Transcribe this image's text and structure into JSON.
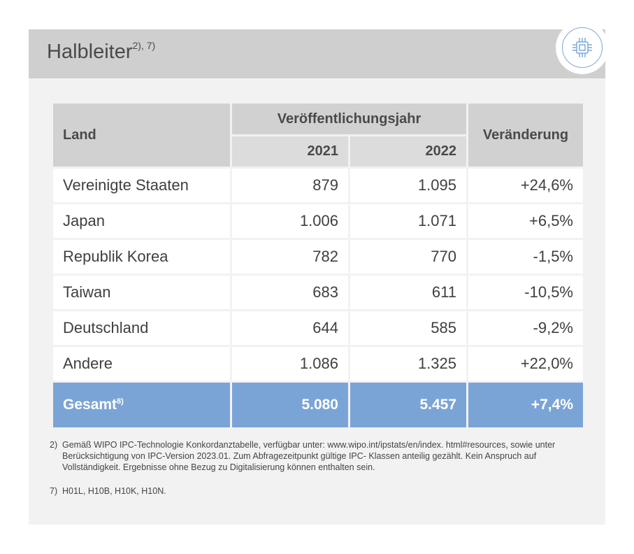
{
  "header": {
    "title": "Halbleiter",
    "title_sup": "2), 7)",
    "icon": "chip-icon"
  },
  "table": {
    "col_land": "Land",
    "col_group": "Veröffentlichungsjahr",
    "col_2021": "2021",
    "col_2022": "2022",
    "col_change": "Veränderung",
    "rows": [
      {
        "land": "Vereinigte Staaten",
        "y2021": "879",
        "y2022": "1.095",
        "change": "+24,6%"
      },
      {
        "land": "Japan",
        "y2021": "1.006",
        "y2022": "1.071",
        "change": "+6,5%"
      },
      {
        "land": "Republik Korea",
        "y2021": "782",
        "y2022": "770",
        "change": "-1,5%"
      },
      {
        "land": "Taiwan",
        "y2021": "683",
        "y2022": "611",
        "change": "-10,5%"
      },
      {
        "land": "Deutschland",
        "y2021": "644",
        "y2022": "585",
        "change": "-9,2%"
      },
      {
        "land": "Andere",
        "y2021": "1.086",
        "y2022": "1.325",
        "change": "+22,0%"
      }
    ],
    "total": {
      "land": "Gesamt",
      "sup": "8)",
      "y2021": "5.080",
      "y2022": "5.457",
      "change": "+7,4%"
    }
  },
  "notes": [
    {
      "num": "2)",
      "text": "Gemäß WIPO IPC-Technologie Konkordanztabelle, verfügbar unter: www.wipo.int/ipstats/en/index. html#resources, sowie unter Berücksichtigung von IPC-Version 2023.01. Zum Abfragezeitpunkt gültige IPC- Klassen anteilig gezählt. Kein Anspruch auf Vollständigkeit. Ergebnisse ohne Bezug zu Digitalisierung können enthalten sein."
    },
    {
      "num": "7)",
      "text": "H01L, H10B, H10K, H10N."
    }
  ],
  "colors": {
    "accent": "#7ba4d6",
    "header_bg": "#cfcfcf",
    "card_bg": "#f2f2f2"
  }
}
